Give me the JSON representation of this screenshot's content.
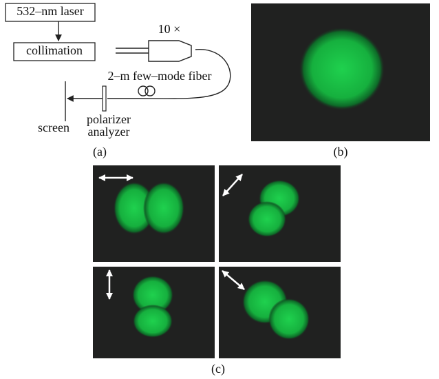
{
  "schematic": {
    "laser": "532–nm laser",
    "collimation": "collimation",
    "objective": "10 ×",
    "fiber": "2–m few–mode fiber",
    "polarizer": "polarizer",
    "analyzer": "analyzer",
    "screen": "screen"
  },
  "captions": [
    "(a)",
    "(b)",
    "(c)"
  ]
}
